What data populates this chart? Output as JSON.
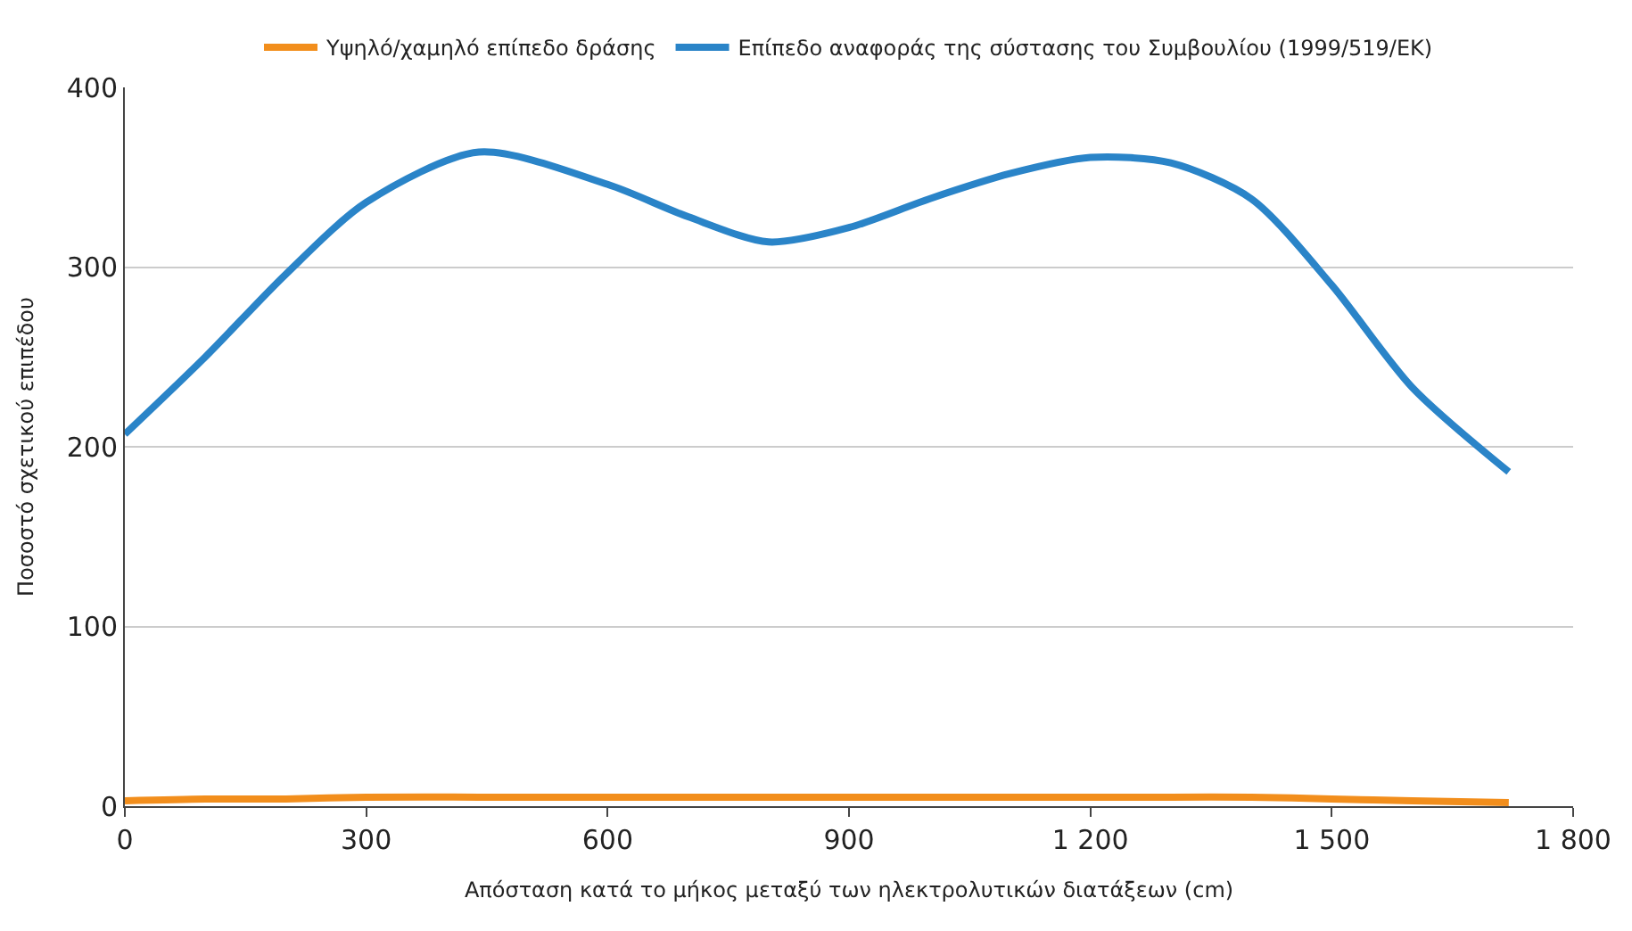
{
  "chart_data": {
    "type": "line",
    "xlabel": "Απόσταση κατά το μήκος μεταξύ των ηλεκτρολυτικών διατάξεων (cm)",
    "ylabel": "Ποσοστό σχετικού επιπέδου",
    "x": [
      0,
      100,
      200,
      300,
      440,
      600,
      700,
      800,
      900,
      1000,
      1100,
      1200,
      1300,
      1400,
      1500,
      1600,
      1720
    ],
    "series": [
      {
        "name": "Υψηλό/χαμηλό επίπεδο δράσης",
        "color": "#f28e1c",
        "values": [
          3,
          4,
          4,
          5,
          5,
          5,
          5,
          5,
          5,
          5,
          5,
          5,
          5,
          5,
          4,
          3,
          2
        ]
      },
      {
        "name": "Επίπεδο αναφοράς της σύστασης του Συμβουλίου (1999/519/ΕΚ)",
        "color": "#2a84c8",
        "values": [
          207,
          250,
          296,
          336,
          364,
          346,
          328,
          314,
          322,
          338,
          352,
          361,
          358,
          338,
          290,
          233,
          186
        ]
      }
    ],
    "xlim": [
      0,
      1800
    ],
    "xticks": [
      0,
      300,
      600,
      900,
      {
        "value": 1200,
        "label": "1 200"
      },
      {
        "value": 1500,
        "label": "1 500"
      },
      {
        "value": 1800,
        "label": "1 800"
      }
    ],
    "ylim": [
      0,
      400
    ],
    "yticks": [
      0,
      100,
      200,
      300,
      400
    ],
    "grid": "y",
    "legend": "top",
    "marker": "none",
    "line_style": "solid"
  }
}
